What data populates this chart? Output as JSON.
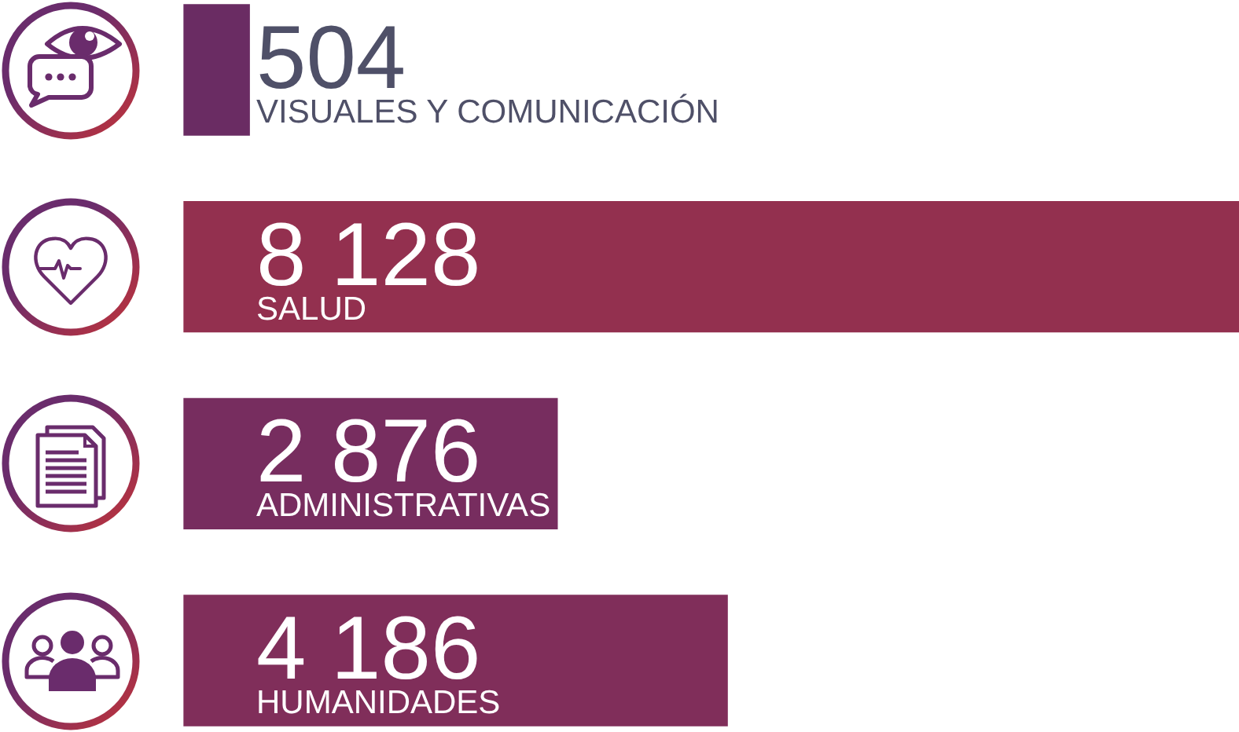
{
  "chart_data": {
    "type": "bar",
    "orientation": "horizontal",
    "categories": [
      "VISUALES Y COMUNICACIÓN",
      "SALUD",
      "ADMINISTRATIVAS",
      "HUMANIDADES"
    ],
    "values": [
      504,
      8128,
      2876,
      4186
    ],
    "value_labels": [
      "504",
      "8 128",
      "2 876",
      "4 186"
    ],
    "colors": [
      "#6a2c63",
      "#93304f",
      "#772d5f",
      "#802e5a"
    ],
    "xlim": [
      0,
      8128
    ],
    "tick_labels": false
  }
}
